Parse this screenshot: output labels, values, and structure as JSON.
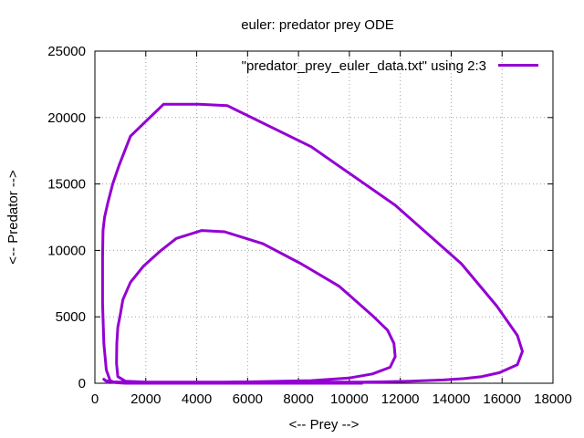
{
  "chart_data": {
    "type": "line",
    "title": "euler: predator prey ODE",
    "xlabel": "<-- Prey -->",
    "ylabel": "<-- Predator -->",
    "xlim": [
      0,
      18000
    ],
    "ylim": [
      0,
      25000
    ],
    "xticks": [
      "0",
      "2000",
      "4000",
      "6000",
      "8000",
      "10000",
      "12000",
      "14000",
      "16000",
      "18000"
    ],
    "yticks": [
      "0",
      "5000",
      "10000",
      "15000",
      "20000",
      "25000"
    ],
    "grid": true,
    "legend_position": "top-right",
    "color": "#9400d3",
    "series": [
      {
        "name": "\"predator_prey_euler_data.txt\" using 2:3",
        "x": [
          10500,
          6800,
          3200,
          1200,
          800,
          600,
          450,
          350,
          300,
          300,
          320,
          380,
          500,
          700,
          950,
          1400,
          2700,
          3100,
          4100,
          5200,
          8500,
          11800,
          14400,
          15800,
          16600,
          16800,
          16600,
          15900,
          15200,
          14500,
          13700,
          12400,
          11200,
          10500,
          9000,
          5500,
          2000,
          1200,
          900,
          850,
          860,
          900,
          1000,
          1100,
          1400,
          1900,
          2600,
          3200,
          4200,
          5100,
          6600,
          8100,
          9600,
          10900,
          11500,
          11750,
          11800,
          11600,
          10900,
          10000,
          8500,
          6000,
          3000,
          1500,
          700,
          400,
          350,
          500
        ],
        "y": [
          0,
          0,
          0,
          0,
          50,
          200,
          1000,
          3000,
          6000,
          9500,
          11500,
          12500,
          13500,
          15000,
          16400,
          18600,
          21000,
          21000,
          21000,
          20900,
          17800,
          13400,
          9000,
          5800,
          3600,
          2400,
          1400,
          800,
          500,
          350,
          250,
          150,
          100,
          80,
          80,
          80,
          80,
          150,
          500,
          1500,
          3000,
          4200,
          5200,
          6300,
          7600,
          8800,
          10000,
          10900,
          11500,
          11400,
          10500,
          9000,
          7300,
          5100,
          4000,
          3000,
          2000,
          1200,
          700,
          400,
          200,
          100,
          50,
          60,
          100,
          200,
          300,
          80
        ]
      }
    ]
  }
}
